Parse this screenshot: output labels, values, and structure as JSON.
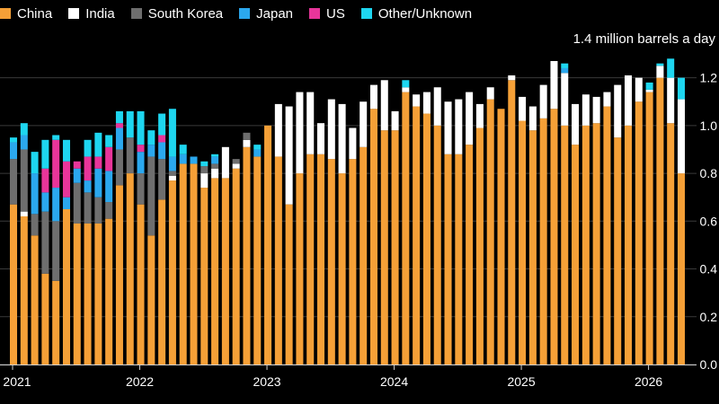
{
  "colors": {
    "China": "#f5a037",
    "India": "#ffffff",
    "South Korea": "#6e6e6e",
    "Japan": "#2ba8ee",
    "US": "#e8359a",
    "Other/Unknown": "#1ed6f0",
    "grid": "#3a3a3a",
    "background": "#000000"
  },
  "chart_data": {
    "type": "bar",
    "stacked": true,
    "title": "",
    "xlabel": "",
    "ylabel": "1.4 million barrels a day",
    "unit_label": "1.4 million barrels a day",
    "ylim": [
      0,
      1.3
    ],
    "yticks": [
      0.0,
      0.2,
      0.4,
      0.6,
      0.8,
      1.0,
      1.2
    ],
    "ytick_labels": [
      "0.0",
      "0.2",
      "0.4",
      "0.6",
      "0.8",
      "1.0",
      "1.2"
    ],
    "grid": true,
    "legend_position": "top-left",
    "x_start": "2021-01",
    "xticks": [
      {
        "label": "2021",
        "index": 0
      },
      {
        "label": "2022",
        "index": 12
      },
      {
        "label": "2023",
        "index": 24
      },
      {
        "label": "2024",
        "index": 36
      },
      {
        "label": "2025",
        "index": 48
      },
      {
        "label": "2026",
        "index": 60
      }
    ],
    "categories": [
      "Jan 2021",
      "Feb 2021",
      "Mar 2021",
      "Apr 2021",
      "May 2021",
      "Jun 2021",
      "Jul 2021",
      "Aug 2021",
      "Sep 2021",
      "Oct 2021",
      "Nov 2021",
      "Dec 2021",
      "Jan 2022",
      "Feb 2022",
      "Mar 2022",
      "Apr 2022",
      "May 2022",
      "Jun 2022",
      "Jul 2022",
      "Aug 2022",
      "Sep 2022",
      "Oct 2022",
      "Nov 2022",
      "Dec 2022",
      "Jan 2023",
      "Feb 2023",
      "Mar 2023",
      "Apr 2023",
      "May 2023",
      "Jun 2023",
      "Jul 2023",
      "Aug 2023",
      "Sep 2023",
      "Oct 2023",
      "Nov 2023",
      "Dec 2023",
      "Jan 2024",
      "Feb 2024",
      "Mar 2024",
      "Apr 2024",
      "May 2024",
      "Jun 2024",
      "Jul 2024",
      "Aug 2024",
      "Sep 2024",
      "Oct 2024",
      "Nov 2024",
      "Dec 2024",
      "Jan 2025",
      "Feb 2025",
      "Mar 2025",
      "Apr 2025",
      "May 2025",
      "Jun 2025",
      "Jul 2025",
      "Aug 2025",
      "Sep 2025",
      "Oct 2025",
      "Nov 2025",
      "Dec 2025",
      "Jan 2026",
      "Feb 2026",
      "Mar 2026",
      "Apr 2026"
    ],
    "series": [
      {
        "name": "China",
        "values": [
          0.67,
          0.62,
          0.54,
          0.38,
          0.35,
          0.65,
          0.59,
          0.59,
          0.59,
          0.61,
          0.75,
          0.8,
          0.67,
          0.54,
          0.69,
          0.77,
          0.84,
          0.84,
          0.74,
          0.78,
          0.78,
          0.82,
          0.91,
          0.87,
          1.0,
          0.87,
          0.67,
          0.8,
          0.88,
          0.88,
          0.86,
          0.8,
          0.86,
          0.91,
          1.07,
          0.98,
          0.98,
          1.14,
          1.08,
          1.05,
          1.0,
          0.88,
          0.88,
          0.92,
          0.99,
          1.11,
          1.07,
          1.19,
          1.02,
          0.98,
          1.03,
          1.07,
          1.0,
          0.92,
          1.0,
          1.01,
          1.08,
          0.95,
          1.0,
          1.1,
          1.14,
          1.2,
          1.01,
          0.8
        ]
      },
      {
        "name": "India",
        "values": [
          0,
          0.02,
          0,
          0,
          0,
          0,
          0,
          0,
          0,
          0,
          0,
          0,
          0,
          0,
          0,
          0.02,
          0,
          0,
          0.06,
          0.04,
          0.13,
          0.02,
          0.03,
          0,
          0,
          0.22,
          0.41,
          0.34,
          0.26,
          0.13,
          0.25,
          0.29,
          0.13,
          0.19,
          0.1,
          0.21,
          0.08,
          0.02,
          0.05,
          0.09,
          0.16,
          0.22,
          0.23,
          0.22,
          0.1,
          0.05,
          0,
          0.02,
          0.1,
          0.1,
          0.14,
          0.2,
          0.22,
          0.17,
          0.13,
          0.11,
          0.06,
          0.22,
          0.21,
          0.1,
          0.01,
          0.05,
          0.19,
          0.31
        ]
      },
      {
        "name": "South Korea",
        "values": [
          0.19,
          0.26,
          0.09,
          0.26,
          0.25,
          0,
          0.17,
          0.13,
          0.11,
          0.07,
          0.15,
          0.15,
          0.13,
          0.33,
          0.17,
          0.02,
          0,
          0,
          0.03,
          0.02,
          0,
          0.02,
          0.03,
          0,
          0,
          0,
          0,
          0,
          0,
          0,
          0,
          0,
          0,
          0,
          0,
          0,
          0,
          0,
          0,
          0,
          0,
          0,
          0,
          0,
          0,
          0,
          0,
          0,
          0,
          0,
          0,
          0,
          0,
          0,
          0,
          0,
          0,
          0,
          0,
          0,
          0,
          0,
          0,
          0
        ]
      },
      {
        "name": "Japan",
        "values": [
          0.07,
          0.06,
          0.17,
          0.08,
          0.14,
          0.05,
          0.06,
          0.05,
          0.12,
          0.13,
          0.09,
          0,
          0.09,
          0.05,
          0.07,
          0.06,
          0.04,
          0.03,
          0,
          0.03,
          0,
          0,
          0,
          0.03,
          0,
          0,
          0,
          0,
          0,
          0,
          0,
          0,
          0,
          0,
          0,
          0,
          0,
          0,
          0,
          0,
          0,
          0,
          0,
          0,
          0,
          0,
          0,
          0,
          0,
          0,
          0,
          0,
          0.02,
          0,
          0,
          0,
          0,
          0,
          0,
          0,
          0,
          0,
          0,
          0
        ]
      },
      {
        "name": "US",
        "values": [
          0,
          0,
          0,
          0.1,
          0.2,
          0.15,
          0.03,
          0.1,
          0.05,
          0.1,
          0.02,
          0,
          0.03,
          0,
          0.03,
          0,
          0,
          0,
          0,
          0,
          0,
          0,
          0,
          0,
          0,
          0,
          0,
          0,
          0,
          0,
          0,
          0,
          0,
          0,
          0,
          0,
          0,
          0,
          0,
          0,
          0,
          0,
          0,
          0,
          0,
          0,
          0,
          0,
          0,
          0,
          0,
          0,
          0,
          0,
          0,
          0,
          0,
          0,
          0,
          0,
          0,
          0,
          0,
          0
        ]
      },
      {
        "name": "Other/Unknown",
        "values": [
          0.02,
          0.05,
          0.09,
          0.12,
          0.02,
          0.09,
          0,
          0.07,
          0.1,
          0.05,
          0.05,
          0.11,
          0.14,
          0.06,
          0.09,
          0.2,
          0.04,
          0,
          0.02,
          0.01,
          0,
          0,
          0,
          0.02,
          0,
          0,
          0,
          0,
          0,
          0,
          0,
          0,
          0,
          0,
          0,
          0,
          0,
          0.03,
          0,
          0,
          0,
          0,
          0,
          0,
          0,
          0,
          0,
          0,
          0,
          0,
          0,
          0,
          0.02,
          0,
          0,
          0,
          0,
          0,
          0,
          0,
          0.03,
          0.01,
          0.08,
          0.09
        ]
      }
    ]
  }
}
